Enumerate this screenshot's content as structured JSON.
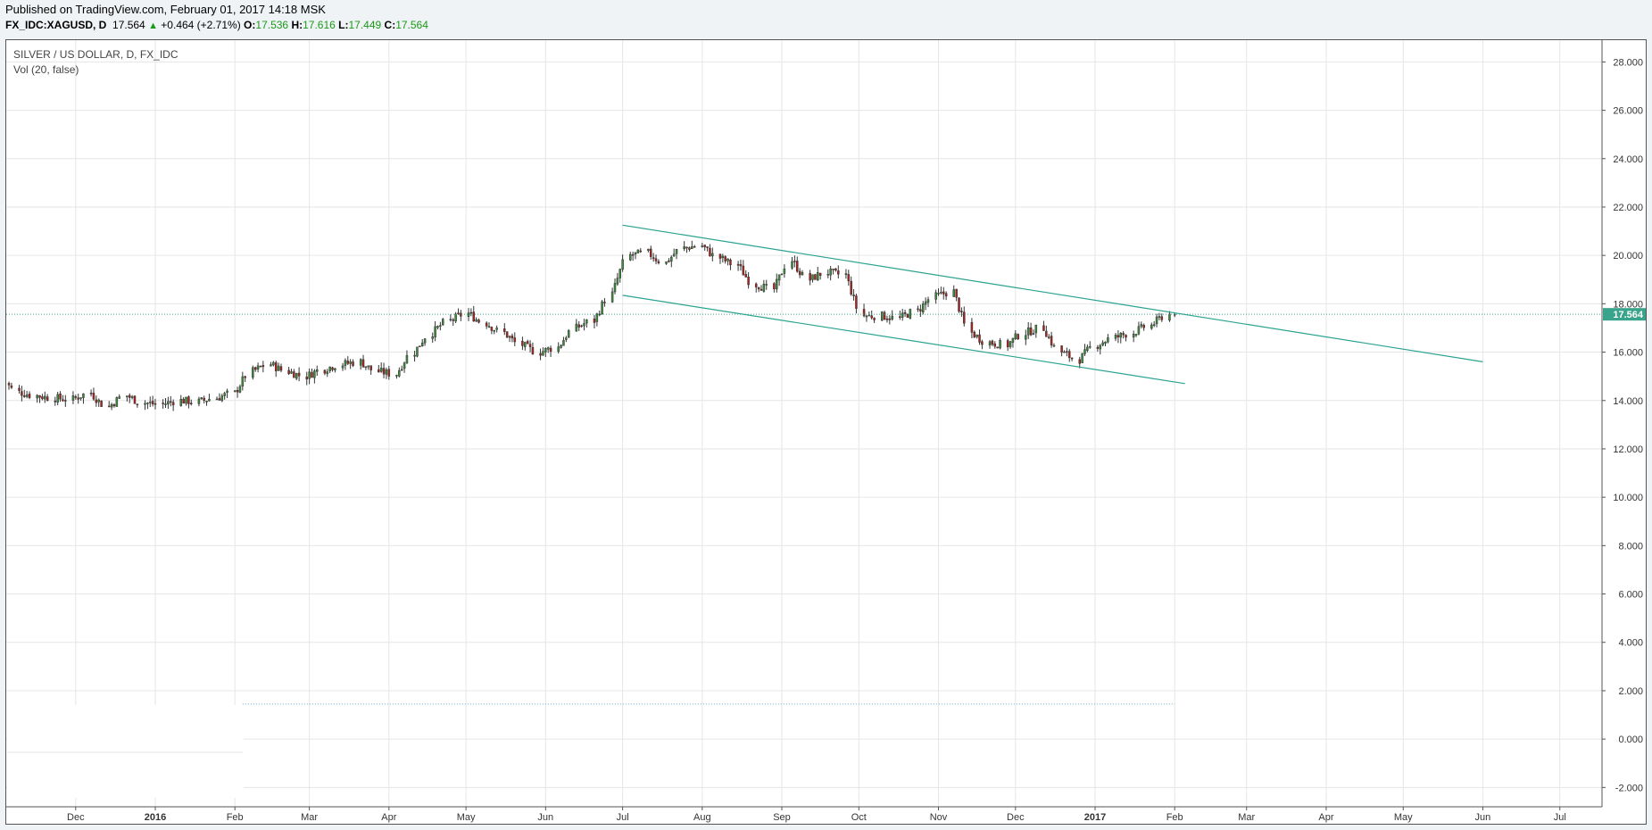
{
  "header": {
    "published": "Published on TradingView.com, February 01, 2017 14:18 MSK",
    "symbol": "FX_IDC:XAGUSD, D",
    "last": "17.564",
    "arrow": "▲",
    "change": "+0.464 (+2.71%)",
    "open_label": "O:",
    "open": "17.536",
    "high_label": "H:",
    "high": "17.616",
    "low_label": "L:",
    "low": "17.449",
    "close_label": "C:",
    "close": "17.564"
  },
  "legend": {
    "title": "SILVER / US DOLLAR, D, FX_IDC",
    "volume": "Vol (20, false)"
  },
  "colors": {
    "up": "#3d8a3b",
    "down": "#a8241f",
    "trend": "#2aa38f",
    "grid": "#e6e6e6",
    "price_tag": "#3aa38b"
  },
  "chart_data": {
    "type": "candlestick",
    "y_range": [
      -2.8,
      28.9
    ],
    "y_ticks": [
      "28.000",
      "26.000",
      "24.000",
      "22.000",
      "20.000",
      "18.000",
      "16.000",
      "14.000",
      "12.000",
      "10.000",
      "8.000",
      "6.000",
      "4.000",
      "2.000",
      "0.000",
      "-2.000"
    ],
    "y_tick_values": [
      28,
      26,
      24,
      22,
      20,
      18,
      16,
      14,
      12,
      10,
      8,
      6,
      4,
      2,
      0,
      -2
    ],
    "x_ticks": [
      {
        "label": "Dec",
        "date": "2015-12-01",
        "bold": false
      },
      {
        "label": "2016",
        "date": "2016-01-01",
        "bold": true
      },
      {
        "label": "Feb",
        "date": "2016-02-01",
        "bold": false
      },
      {
        "label": "Mar",
        "date": "2016-03-01",
        "bold": false
      },
      {
        "label": "Apr",
        "date": "2016-04-01",
        "bold": false
      },
      {
        "label": "May",
        "date": "2016-05-01",
        "bold": false
      },
      {
        "label": "Jun",
        "date": "2016-06-01",
        "bold": false
      },
      {
        "label": "Jul",
        "date": "2016-07-01",
        "bold": false
      },
      {
        "label": "Aug",
        "date": "2016-08-01",
        "bold": false
      },
      {
        "label": "Sep",
        "date": "2016-09-01",
        "bold": false
      },
      {
        "label": "Oct",
        "date": "2016-10-01",
        "bold": false
      },
      {
        "label": "Nov",
        "date": "2016-11-01",
        "bold": false
      },
      {
        "label": "Dec",
        "date": "2016-12-01",
        "bold": false
      },
      {
        "label": "2017",
        "date": "2017-01-01",
        "bold": true
      },
      {
        "label": "Feb",
        "date": "2017-02-01",
        "bold": false
      },
      {
        "label": "Mar",
        "date": "2017-03-01",
        "bold": false
      },
      {
        "label": "Apr",
        "date": "2017-04-01",
        "bold": false
      },
      {
        "label": "May",
        "date": "2017-05-01",
        "bold": false
      },
      {
        "label": "Jun",
        "date": "2017-06-01",
        "bold": false
      },
      {
        "label": "Jul",
        "date": "2017-07-01",
        "bold": false
      }
    ],
    "close_series": [
      {
        "date": "2015-11-03",
        "close": 15.0
      },
      {
        "date": "2015-11-10",
        "close": 14.35
      },
      {
        "date": "2015-11-17",
        "close": 14.2
      },
      {
        "date": "2015-11-24",
        "close": 14.1
      },
      {
        "date": "2015-12-01",
        "close": 14.05
      },
      {
        "date": "2015-12-08",
        "close": 14.3
      },
      {
        "date": "2015-12-15",
        "close": 13.75
      },
      {
        "date": "2015-12-22",
        "close": 14.2
      },
      {
        "date": "2015-12-29",
        "close": 13.9
      },
      {
        "date": "2016-01-05",
        "close": 13.85
      },
      {
        "date": "2016-01-12",
        "close": 14.0
      },
      {
        "date": "2016-01-19",
        "close": 13.95
      },
      {
        "date": "2016-01-26",
        "close": 14.1
      },
      {
        "date": "2016-02-02",
        "close": 14.3
      },
      {
        "date": "2016-02-09",
        "close": 15.2
      },
      {
        "date": "2016-02-16",
        "close": 15.5
      },
      {
        "date": "2016-02-23",
        "close": 15.2
      },
      {
        "date": "2016-03-01",
        "close": 15.0
      },
      {
        "date": "2016-03-08",
        "close": 15.3
      },
      {
        "date": "2016-03-15",
        "close": 15.5
      },
      {
        "date": "2016-03-22",
        "close": 15.6
      },
      {
        "date": "2016-03-29",
        "close": 15.2
      },
      {
        "date": "2016-04-05",
        "close": 15.1
      },
      {
        "date": "2016-04-12",
        "close": 16.0
      },
      {
        "date": "2016-04-19",
        "close": 16.8
      },
      {
        "date": "2016-04-26",
        "close": 17.3
      },
      {
        "date": "2016-05-03",
        "close": 17.6
      },
      {
        "date": "2016-05-10",
        "close": 17.2
      },
      {
        "date": "2016-05-17",
        "close": 16.8
      },
      {
        "date": "2016-05-24",
        "close": 16.3
      },
      {
        "date": "2016-05-31",
        "close": 16.0
      },
      {
        "date": "2016-06-07",
        "close": 16.2
      },
      {
        "date": "2016-06-14",
        "close": 17.0
      },
      {
        "date": "2016-06-21",
        "close": 17.3
      },
      {
        "date": "2016-06-28",
        "close": 18.4
      },
      {
        "date": "2016-07-05",
        "close": 20.0
      },
      {
        "date": "2016-07-12",
        "close": 20.1
      },
      {
        "date": "2016-07-19",
        "close": 19.7
      },
      {
        "date": "2016-07-26",
        "close": 20.3
      },
      {
        "date": "2016-08-02",
        "close": 20.4
      },
      {
        "date": "2016-08-09",
        "close": 19.9
      },
      {
        "date": "2016-08-16",
        "close": 19.6
      },
      {
        "date": "2016-08-23",
        "close": 18.8
      },
      {
        "date": "2016-08-30",
        "close": 18.6
      },
      {
        "date": "2016-09-06",
        "close": 19.8
      },
      {
        "date": "2016-09-13",
        "close": 19.0
      },
      {
        "date": "2016-09-20",
        "close": 19.3
      },
      {
        "date": "2016-09-27",
        "close": 19.2
      },
      {
        "date": "2016-10-04",
        "close": 17.5
      },
      {
        "date": "2016-10-11",
        "close": 17.5
      },
      {
        "date": "2016-10-18",
        "close": 17.4
      },
      {
        "date": "2016-10-25",
        "close": 17.7
      },
      {
        "date": "2016-11-01",
        "close": 18.3
      },
      {
        "date": "2016-11-08",
        "close": 18.5
      },
      {
        "date": "2016-11-15",
        "close": 16.8
      },
      {
        "date": "2016-11-22",
        "close": 16.4
      },
      {
        "date": "2016-11-29",
        "close": 16.3
      },
      {
        "date": "2016-12-06",
        "close": 16.8
      },
      {
        "date": "2016-12-13",
        "close": 17.0
      },
      {
        "date": "2016-12-20",
        "close": 16.0
      },
      {
        "date": "2016-12-27",
        "close": 15.7
      },
      {
        "date": "2017-01-03",
        "close": 16.3
      },
      {
        "date": "2017-01-10",
        "close": 16.6
      },
      {
        "date": "2017-01-17",
        "close": 16.8
      },
      {
        "date": "2017-01-24",
        "close": 17.1
      },
      {
        "date": "2017-01-31",
        "close": 17.564
      }
    ],
    "trendlines": [
      {
        "name": "upper",
        "start": {
          "date": "2016-07-01",
          "value": 21.25
        },
        "end": {
          "date": "2017-06-01",
          "value": 15.6
        }
      },
      {
        "name": "lower",
        "start": {
          "date": "2016-07-01",
          "value": 18.35
        },
        "end": {
          "date": "2017-02-05",
          "value": 14.7
        }
      }
    ],
    "current_price": {
      "value": 17.564,
      "label": "17.564"
    },
    "volume_reference": {
      "value": 1.45,
      "from": "2016-02-04",
      "to": "2017-02-01"
    }
  }
}
